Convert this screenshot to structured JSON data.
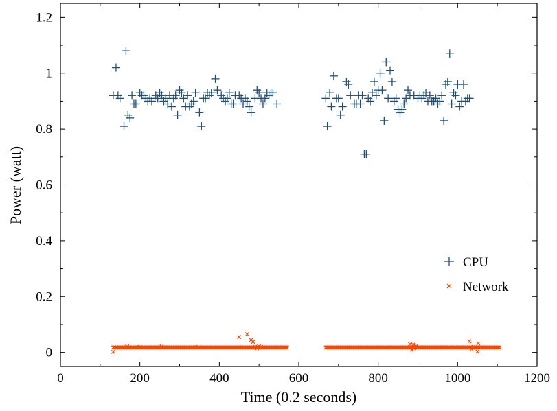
{
  "chart_data": {
    "type": "scatter",
    "xlabel": "Time (0.2 seconds)",
    "ylabel": "Power (watt)",
    "xlim": [
      0,
      1200
    ],
    "ylim": [
      -0.05,
      1.25
    ],
    "x_ticks": [
      0,
      200,
      400,
      600,
      800,
      1000,
      1200
    ],
    "x_tick_labels": [
      "0",
      "200",
      "400",
      "600",
      "800",
      "1000",
      "1200"
    ],
    "y_ticks": [
      0,
      0.2,
      0.4,
      0.6,
      0.8,
      1.0,
      1.2
    ],
    "y_tick_labels": [
      "0",
      "0.2",
      "0.4",
      "0.6",
      "0.8",
      "1",
      "1.2"
    ],
    "grid": false,
    "legend_position": "lower-right",
    "series": [
      {
        "name": "CPU",
        "marker": "plus",
        "color": "#1f4e79",
        "points": [
          [
            133,
            0.92
          ],
          [
            140,
            1.02
          ],
          [
            145,
            0.92
          ],
          [
            150,
            0.91
          ],
          [
            160,
            0.81
          ],
          [
            165,
            1.08
          ],
          [
            170,
            0.85
          ],
          [
            175,
            0.84
          ],
          [
            180,
            0.92
          ],
          [
            185,
            0.89
          ],
          [
            190,
            0.89
          ],
          [
            200,
            0.93
          ],
          [
            205,
            0.92
          ],
          [
            210,
            0.92
          ],
          [
            215,
            0.91
          ],
          [
            220,
            0.9
          ],
          [
            225,
            0.91
          ],
          [
            230,
            0.9
          ],
          [
            240,
            0.92
          ],
          [
            245,
            0.91
          ],
          [
            250,
            0.93
          ],
          [
            255,
            0.92
          ],
          [
            260,
            0.9
          ],
          [
            265,
            0.91
          ],
          [
            270,
            0.89
          ],
          [
            275,
            0.92
          ],
          [
            280,
            0.88
          ],
          [
            285,
            0.91
          ],
          [
            290,
            0.92
          ],
          [
            295,
            0.85
          ],
          [
            300,
            0.94
          ],
          [
            305,
            0.93
          ],
          [
            310,
            0.91
          ],
          [
            315,
            0.88
          ],
          [
            320,
            0.92
          ],
          [
            325,
            0.88
          ],
          [
            330,
            0.89
          ],
          [
            335,
            0.9
          ],
          [
            340,
            0.93
          ],
          [
            350,
            0.86
          ],
          [
            355,
            0.81
          ],
          [
            360,
            0.91
          ],
          [
            365,
            0.91
          ],
          [
            370,
            0.93
          ],
          [
            375,
            0.92
          ],
          [
            380,
            0.93
          ],
          [
            390,
            0.98
          ],
          [
            395,
            0.94
          ],
          [
            405,
            0.92
          ],
          [
            410,
            0.91
          ],
          [
            415,
            0.9
          ],
          [
            420,
            0.91
          ],
          [
            425,
            0.93
          ],
          [
            430,
            0.89
          ],
          [
            435,
            0.89
          ],
          [
            440,
            0.92
          ],
          [
            450,
            0.92
          ],
          [
            455,
            0.91
          ],
          [
            460,
            0.89
          ],
          [
            465,
            0.91
          ],
          [
            470,
            0.9
          ],
          [
            475,
            0.88
          ],
          [
            480,
            0.86
          ],
          [
            490,
            0.91
          ],
          [
            495,
            0.94
          ],
          [
            500,
            0.93
          ],
          [
            505,
            0.91
          ],
          [
            510,
            0.89
          ],
          [
            515,
            0.91
          ],
          [
            520,
            0.93
          ],
          [
            525,
            0.92
          ],
          [
            530,
            0.93
          ],
          [
            535,
            0.93
          ],
          [
            545,
            0.89
          ],
          [
            668,
            0.91
          ],
          [
            672,
            0.81
          ],
          [
            678,
            0.93
          ],
          [
            682,
            0.88
          ],
          [
            688,
            0.99
          ],
          [
            695,
            0.91
          ],
          [
            700,
            0.91
          ],
          [
            705,
            0.85
          ],
          [
            710,
            0.88
          ],
          [
            720,
            0.97
          ],
          [
            725,
            0.96
          ],
          [
            730,
            0.92
          ],
          [
            740,
            0.89
          ],
          [
            745,
            0.89
          ],
          [
            750,
            0.92
          ],
          [
            755,
            0.89
          ],
          [
            760,
            0.92
          ],
          [
            765,
            0.71
          ],
          [
            770,
            0.71
          ],
          [
            775,
            0.91
          ],
          [
            780,
            0.9
          ],
          [
            785,
            0.93
          ],
          [
            790,
            0.97
          ],
          [
            795,
            0.92
          ],
          [
            800,
            0.94
          ],
          [
            805,
            1.0
          ],
          [
            810,
            0.94
          ],
          [
            815,
            0.83
          ],
          [
            820,
            1.04
          ],
          [
            825,
            0.91
          ],
          [
            830,
            1.01
          ],
          [
            835,
            0.97
          ],
          [
            840,
            0.9
          ],
          [
            845,
            0.91
          ],
          [
            850,
            0.87
          ],
          [
            855,
            0.86
          ],
          [
            860,
            0.87
          ],
          [
            865,
            0.89
          ],
          [
            870,
            0.91
          ],
          [
            875,
            0.94
          ],
          [
            880,
            0.92
          ],
          [
            890,
            0.92
          ],
          [
            900,
            0.91
          ],
          [
            905,
            0.92
          ],
          [
            910,
            0.91
          ],
          [
            915,
            0.92
          ],
          [
            920,
            0.93
          ],
          [
            925,
            0.9
          ],
          [
            930,
            0.92
          ],
          [
            935,
            0.9
          ],
          [
            940,
            0.9
          ],
          [
            945,
            0.91
          ],
          [
            950,
            0.89
          ],
          [
            955,
            0.9
          ],
          [
            960,
            0.92
          ],
          [
            965,
            0.83
          ],
          [
            970,
            0.96
          ],
          [
            975,
            0.97
          ],
          [
            980,
            1.07
          ],
          [
            985,
            0.89
          ],
          [
            990,
            0.93
          ],
          [
            995,
            0.92
          ],
          [
            1000,
            0.96
          ],
          [
            1005,
            0.88
          ],
          [
            1010,
            0.9
          ],
          [
            1015,
            0.96
          ],
          [
            1020,
            0.9
          ],
          [
            1025,
            0.91
          ],
          [
            1030,
            0.91
          ]
        ]
      },
      {
        "name": "Network",
        "marker": "x",
        "color": "#ff4500",
        "segments": [
          [
            133,
            572
          ],
          [
            668,
            1106
          ]
        ],
        "baseline": 0.018,
        "points": [
          [
            133,
            0.002
          ],
          [
            168,
            0.022
          ],
          [
            200,
            0.02
          ],
          [
            255,
            0.022
          ],
          [
            340,
            0.02
          ],
          [
            450,
            0.055
          ],
          [
            470,
            0.065
          ],
          [
            480,
            0.045
          ],
          [
            485,
            0.038
          ],
          [
            490,
            0.02
          ],
          [
            495,
            0.015
          ],
          [
            500,
            0.022
          ],
          [
            505,
            0.02
          ],
          [
            880,
            0.03
          ],
          [
            885,
            0.01
          ],
          [
            888,
            0.028
          ],
          [
            890,
            0.015
          ],
          [
            895,
            0.022
          ],
          [
            1030,
            0.04
          ],
          [
            1035,
            0.012
          ],
          [
            1040,
            0.02
          ],
          [
            1050,
            0.003
          ],
          [
            1052,
            0.032
          ]
        ]
      }
    ]
  }
}
